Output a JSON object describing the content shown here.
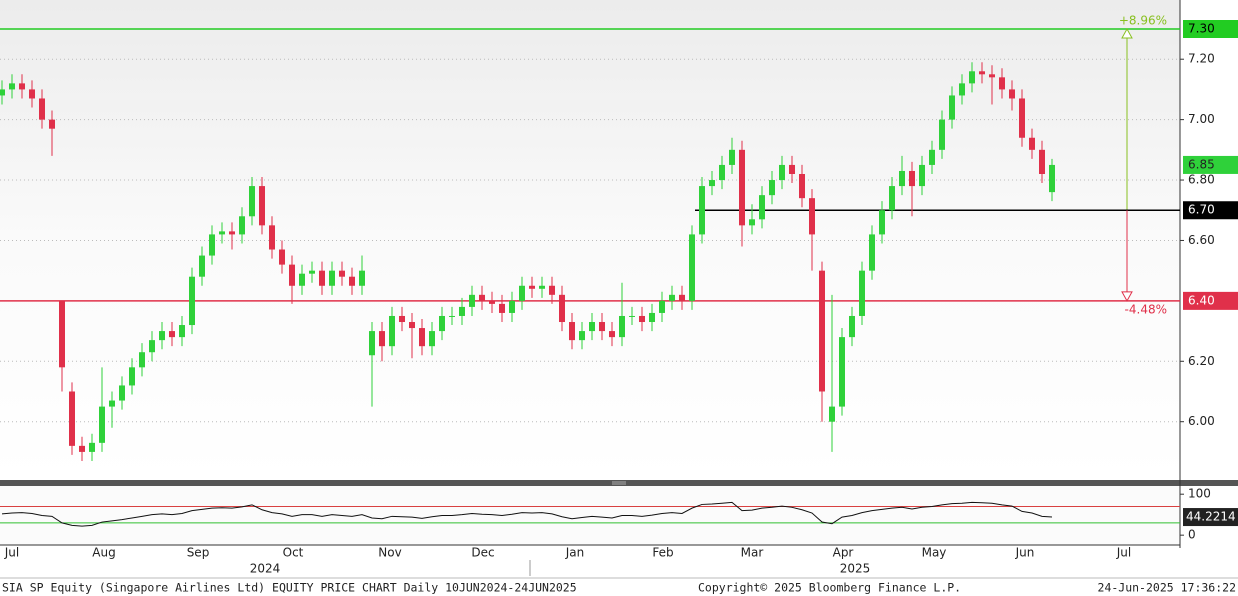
{
  "chart_data": [
    {
      "type": "candlestick",
      "up_color": "#2fd13a",
      "down_color": "#e0304a",
      "open": [
        7.08,
        7.1,
        7.12,
        7.1,
        7.07,
        7.0,
        6.4,
        6.1,
        5.92,
        5.9,
        5.93,
        6.05,
        6.07,
        6.12,
        6.18,
        6.23,
        6.27,
        6.3,
        6.28,
        6.32,
        6.48,
        6.55,
        6.62,
        6.63,
        6.62,
        6.68,
        6.78,
        6.65,
        6.57,
        6.52,
        6.45,
        6.49,
        6.5,
        6.45,
        6.5,
        6.48,
        6.45,
        6.22,
        6.3,
        6.25,
        6.35,
        6.33,
        6.31,
        6.25,
        6.3,
        6.35,
        6.35,
        6.38,
        6.42,
        6.4,
        6.39,
        6.36,
        6.4,
        6.45,
        6.44,
        6.45,
        6.42,
        6.33,
        6.27,
        6.3,
        6.33,
        6.3,
        6.28,
        6.35,
        6.35,
        6.33,
        6.36,
        6.4,
        6.42,
        6.4,
        6.62,
        6.78,
        6.8,
        6.85,
        6.9,
        6.65,
        6.67,
        6.75,
        6.8,
        6.85,
        6.82,
        6.74,
        6.5,
        6.0,
        6.05,
        6.28,
        6.35,
        6.5,
        6.62,
        6.7,
        6.78,
        6.83,
        6.78,
        6.85,
        6.9,
        7.0,
        7.08,
        7.12,
        7.16,
        7.15,
        7.14,
        7.1,
        7.07,
        6.94,
        6.9,
        6.76
      ],
      "high": [
        7.13,
        7.15,
        7.15,
        7.13,
        7.1,
        7.03,
        6.4,
        6.13,
        5.95,
        5.96,
        6.18,
        6.1,
        6.15,
        6.21,
        6.26,
        6.3,
        6.33,
        6.33,
        6.35,
        6.51,
        6.58,
        6.65,
        6.66,
        6.66,
        6.71,
        6.81,
        6.81,
        6.68,
        6.6,
        6.55,
        6.52,
        6.53,
        6.53,
        6.53,
        6.53,
        6.51,
        6.55,
        6.33,
        6.33,
        6.38,
        6.38,
        6.36,
        6.34,
        6.33,
        6.38,
        6.38,
        6.41,
        6.45,
        6.45,
        6.43,
        6.42,
        6.43,
        6.48,
        6.48,
        6.48,
        6.48,
        6.45,
        6.36,
        6.33,
        6.36,
        6.36,
        6.33,
        6.46,
        6.38,
        6.38,
        6.39,
        6.43,
        6.45,
        6.45,
        6.65,
        6.81,
        6.83,
        6.88,
        6.94,
        6.93,
        6.72,
        6.78,
        6.83,
        6.88,
        6.88,
        6.85,
        6.77,
        6.53,
        6.42,
        6.31,
        6.38,
        6.53,
        6.65,
        6.73,
        6.81,
        6.88,
        6.86,
        6.88,
        6.93,
        7.03,
        7.11,
        7.15,
        7.19,
        7.19,
        7.18,
        7.17,
        7.13,
        7.1,
        6.97,
        6.93,
        6.87
      ],
      "low": [
        7.05,
        7.07,
        7.07,
        7.04,
        6.97,
        6.88,
        6.1,
        5.89,
        5.87,
        5.87,
        5.9,
        5.98,
        6.04,
        6.09,
        6.15,
        6.2,
        6.24,
        6.25,
        6.25,
        6.29,
        6.45,
        6.52,
        6.59,
        6.57,
        6.59,
        6.65,
        6.62,
        6.54,
        6.49,
        6.39,
        6.42,
        6.46,
        6.42,
        6.42,
        6.45,
        6.42,
        6.42,
        6.05,
        6.2,
        6.22,
        6.3,
        6.21,
        6.22,
        6.22,
        6.27,
        6.32,
        6.32,
        6.35,
        6.37,
        6.36,
        6.33,
        6.33,
        6.37,
        6.41,
        6.41,
        6.39,
        6.3,
        6.24,
        6.24,
        6.27,
        6.27,
        6.25,
        6.25,
        6.32,
        6.3,
        6.3,
        6.33,
        6.37,
        6.37,
        6.37,
        6.59,
        6.75,
        6.77,
        6.82,
        6.58,
        6.62,
        6.64,
        6.72,
        6.77,
        6.79,
        6.71,
        6.5,
        6.0,
        5.9,
        6.02,
        6.25,
        6.32,
        6.47,
        6.59,
        6.67,
        6.75,
        6.68,
        6.75,
        6.82,
        6.87,
        6.97,
        7.05,
        7.09,
        7.12,
        7.05,
        7.07,
        7.03,
        6.91,
        6.87,
        6.79,
        6.73
      ],
      "close": [
        7.1,
        7.12,
        7.1,
        7.07,
        7.0,
        6.97,
        6.18,
        5.92,
        5.9,
        5.93,
        6.05,
        6.07,
        6.12,
        6.18,
        6.23,
        6.27,
        6.3,
        6.28,
        6.32,
        6.48,
        6.55,
        6.62,
        6.63,
        6.62,
        6.68,
        6.78,
        6.65,
        6.57,
        6.52,
        6.45,
        6.49,
        6.5,
        6.45,
        6.5,
        6.48,
        6.45,
        6.5,
        6.3,
        6.25,
        6.35,
        6.33,
        6.31,
        6.25,
        6.3,
        6.35,
        6.35,
        6.38,
        6.42,
        6.4,
        6.39,
        6.36,
        6.4,
        6.45,
        6.44,
        6.45,
        6.42,
        6.33,
        6.27,
        6.3,
        6.33,
        6.3,
        6.28,
        6.35,
        6.35,
        6.33,
        6.36,
        6.4,
        6.42,
        6.4,
        6.62,
        6.78,
        6.8,
        6.85,
        6.9,
        6.65,
        6.67,
        6.75,
        6.8,
        6.85,
        6.82,
        6.74,
        6.62,
        6.1,
        6.05,
        6.28,
        6.35,
        6.5,
        6.62,
        6.7,
        6.78,
        6.83,
        6.78,
        6.85,
        6.9,
        7.0,
        7.08,
        7.12,
        7.16,
        7.15,
        7.14,
        7.1,
        7.07,
        6.94,
        6.9,
        6.82,
        6.85
      ],
      "xlim": [
        -0.2,
        117.8
      ],
      "xticks": [
        {
          "value": 1.0,
          "label": "Jul"
        },
        {
          "value": 10.2,
          "label": "Aug"
        },
        {
          "value": 19.6,
          "label": "Sep"
        },
        {
          "value": 29.1,
          "label": "Oct"
        },
        {
          "value": 38.8,
          "label": "Nov"
        },
        {
          "value": 48.1,
          "label": "Dec"
        },
        {
          "value": 57.3,
          "label": "Jan"
        },
        {
          "value": 66.1,
          "label": "Feb"
        },
        {
          "value": 75.0,
          "label": "Mar"
        },
        {
          "value": 84.1,
          "label": "Apr"
        },
        {
          "value": 93.2,
          "label": "May"
        },
        {
          "value": 102.3,
          "label": "Jun"
        },
        {
          "value": 112.2,
          "label": "Jul"
        }
      ],
      "year_ticks": [
        {
          "value": 26.3,
          "label": "2024"
        },
        {
          "value": 85.3,
          "label": "2025"
        }
      ],
      "ylim": [
        5.807,
        7.396
      ],
      "yticks": [
        {
          "value": 6.0,
          "label": "6.00"
        },
        {
          "value": 6.2,
          "label": "6.20"
        },
        {
          "value": 6.6,
          "label": "6.60"
        },
        {
          "value": 6.8,
          "label": "6.80"
        },
        {
          "value": 7.0,
          "label": "7.00"
        },
        {
          "value": 7.2,
          "label": "7.20"
        }
      ],
      "grid": true,
      "levels": [
        {
          "value": 7.3,
          "label": "7.30",
          "color": "#22cc22",
          "annotation": "+8.96%",
          "annotation_color": "#88c020"
        },
        {
          "value": 6.7,
          "label": "6.70",
          "color": "#000000",
          "xstart": 69.3
        },
        {
          "value": 6.4,
          "label": "6.40",
          "color": "#e0304a",
          "annotation": "-4.48%",
          "annotation_color": "#e0304a"
        }
      ],
      "last_color": "#2fd13a"
    },
    {
      "type": "line",
      "color": "#111111",
      "values": [
        52,
        54,
        55,
        53,
        48,
        46,
        30,
        24,
        22,
        24,
        32,
        35,
        38,
        42,
        46,
        50,
        52,
        50,
        53,
        60,
        63,
        66,
        67,
        66,
        69,
        74,
        62,
        55,
        52,
        46,
        50,
        50,
        46,
        50,
        48,
        46,
        50,
        42,
        40,
        46,
        45,
        44,
        41,
        45,
        48,
        48,
        50,
        53,
        51,
        50,
        48,
        51,
        55,
        54,
        55,
        52,
        45,
        40,
        43,
        46,
        44,
        42,
        48,
        48,
        46,
        49,
        53,
        55,
        53,
        66,
        75,
        76,
        78,
        80,
        60,
        61,
        66,
        68,
        71,
        68,
        62,
        54,
        32,
        28,
        44,
        48,
        55,
        60,
        63,
        66,
        68,
        64,
        68,
        70,
        74,
        77,
        78,
        80,
        79,
        78,
        74,
        71,
        58,
        54,
        46,
        44.2214
      ],
      "ylim": [
        -24,
        120
      ],
      "yticks": [
        0,
        100
      ],
      "bands": [
        {
          "value": 70,
          "color": "#d94040"
        },
        {
          "value": 30,
          "color": "#30c030"
        }
      ]
    }
  ],
  "footer": {
    "left": "SIA SP Equity (Singapore Airlines Ltd) EQUITY PRICE CHART  Daily 10JUN2024-24JUN2025",
    "center": "Copyright© 2025 Bloomberg Finance L.P.",
    "right": "24-Jun-2025 17:36:22"
  }
}
